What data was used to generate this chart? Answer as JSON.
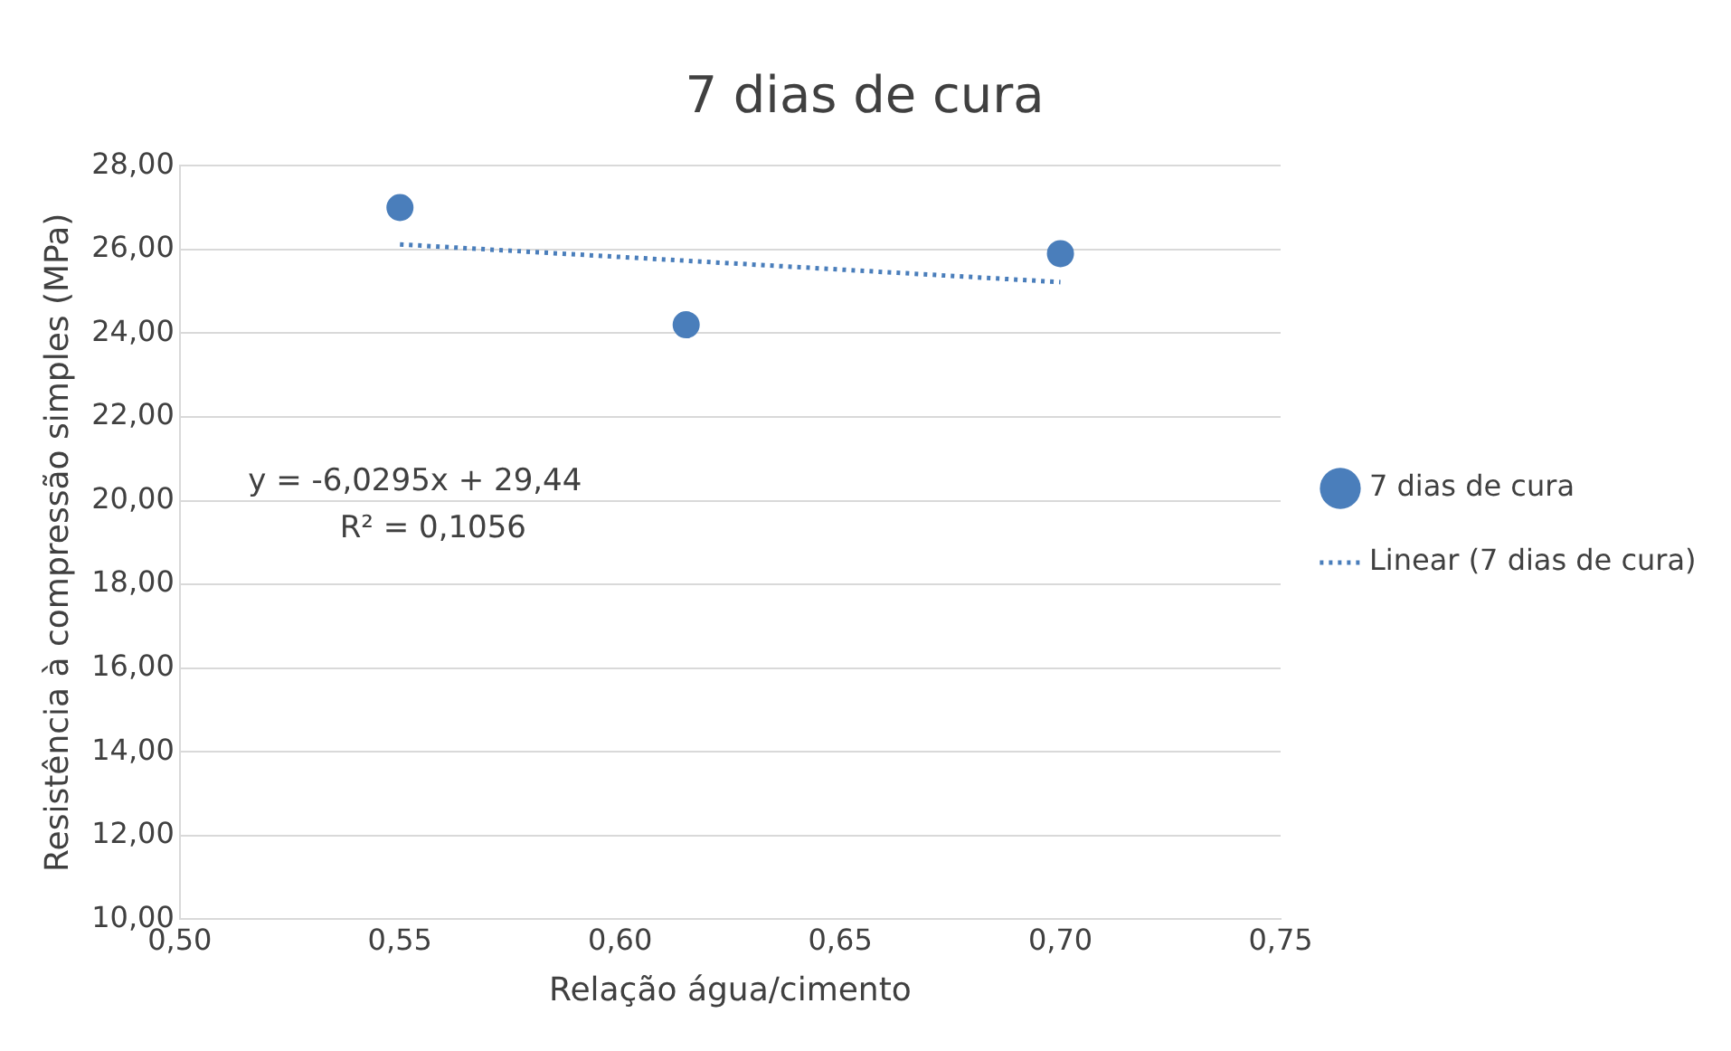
{
  "chart_data": {
    "type": "scatter",
    "title": "7 dias de cura",
    "xlabel": "Relação água/cimento",
    "ylabel": "Resistência à compressão simples (MPa)",
    "series": [
      {
        "name": "7 dias de cura",
        "type": "scatter",
        "color": "#4a7ebb",
        "x": [
          0.55,
          0.615,
          0.7
        ],
        "values": [
          27.0,
          24.2,
          25.9
        ],
        "marker": "circle"
      },
      {
        "name": "Linear (7 dias de cura)",
        "type": "line",
        "color": "#4a7ebb",
        "x": [
          0.55,
          0.7
        ],
        "values": [
          26.12,
          25.22
        ],
        "marker": "none",
        "line_style": "dotted"
      }
    ],
    "xlim": [
      0.5,
      0.75
    ],
    "xticks": [
      {
        "value": 0.5,
        "label": "0,50"
      },
      {
        "value": 0.55,
        "label": "0,55"
      },
      {
        "value": 0.6,
        "label": "0,60"
      },
      {
        "value": 0.65,
        "label": "0,65"
      },
      {
        "value": 0.7,
        "label": "0,70"
      },
      {
        "value": 0.75,
        "label": "0,75"
      }
    ],
    "ylim": [
      10,
      28
    ],
    "yticks": [
      {
        "value": 10,
        "label": "10,00"
      },
      {
        "value": 12,
        "label": "12,00"
      },
      {
        "value": 14,
        "label": "14,00"
      },
      {
        "value": 16,
        "label": "16,00"
      },
      {
        "value": 18,
        "label": "18,00"
      },
      {
        "value": 20,
        "label": "20,00"
      },
      {
        "value": 22,
        "label": "22,00"
      },
      {
        "value": 24,
        "label": "24,00"
      },
      {
        "value": 26,
        "label": "26,00"
      },
      {
        "value": 28,
        "label": "28,00"
      }
    ],
    "annotations": [
      "y = -6,0295x + 29,44",
      "R² = 0,1056"
    ],
    "grid": "y",
    "legend": "right"
  }
}
